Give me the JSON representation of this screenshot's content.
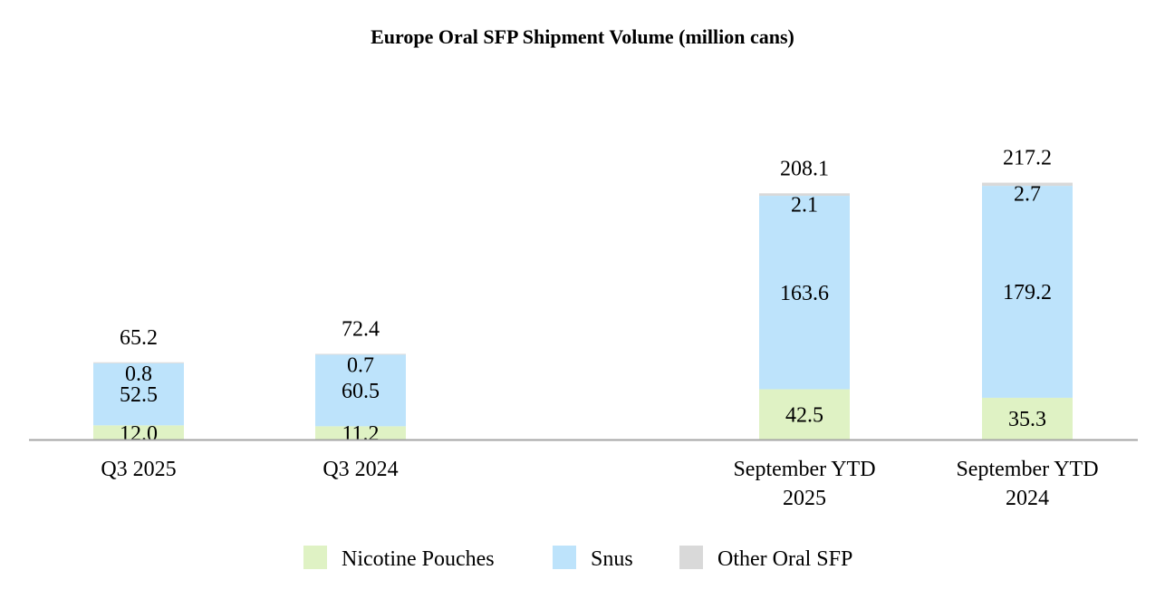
{
  "chart_data": {
    "type": "bar",
    "stacked": true,
    "title": "Europe Oral SFP Shipment Volume (million cans)",
    "xlabel": "",
    "ylabel": "",
    "categories": [
      [
        "Q3 2025"
      ],
      [
        "Q3 2024"
      ],
      [
        "September YTD",
        "2025"
      ],
      [
        "September YTD",
        "2024"
      ]
    ],
    "series": [
      {
        "name": "Nicotine Pouches",
        "color": "#dff2c4",
        "values": [
          12.0,
          11.2,
          42.5,
          35.3
        ],
        "labels": [
          "12.0",
          "11.2",
          "42.5",
          "35.3"
        ]
      },
      {
        "name": "Snus",
        "color": "#bde3fb",
        "values": [
          52.5,
          60.5,
          163.6,
          179.2
        ],
        "labels": [
          "52.5",
          "60.5",
          "163.6",
          "179.2"
        ]
      },
      {
        "name": "Other Oral SFP",
        "color": "#d9d9d9",
        "values": [
          0.8,
          0.7,
          2.1,
          2.7
        ],
        "labels": [
          "0.8",
          "0.7",
          "2.1",
          "2.7"
        ]
      }
    ],
    "totals": [
      "65.2",
      "72.4",
      "208.1",
      "217.2"
    ],
    "legend_position": "bottom"
  }
}
